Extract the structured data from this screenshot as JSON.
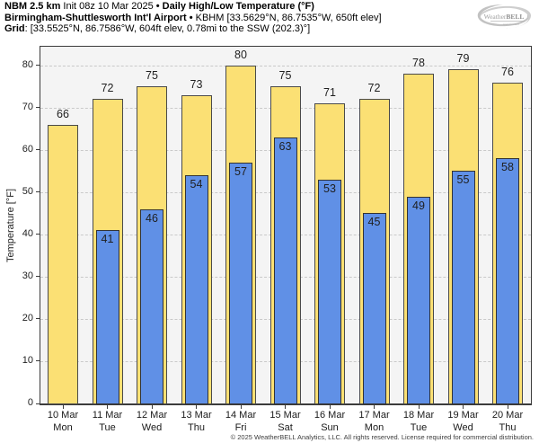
{
  "header": {
    "line1": {
      "model": "NBM 2.5 km",
      "init": " Init 08z 10 Mar 2025 ",
      "sep": "•",
      "product": " Daily High/Low Temperature (°F)"
    },
    "line2": {
      "station_name": "Birmingham-Shuttlesworth Int'l Airport",
      "sep": " • ",
      "station_info": "KBHM [33.5629°N, 86.7535°W, 650ft elev]"
    },
    "line3": {
      "label": "Grid",
      "info": ": [33.5525°N, 86.7586°W, 604ft elev, 0.78mi to the SSW (202.3)°]"
    }
  },
  "logo": {
    "brand": "WeatherBELL",
    "brand_part1": "Weather",
    "brand_part2": "BELL"
  },
  "chart_data": {
    "type": "bar",
    "title": "NBM 2.5 km Daily High/Low Temperature (°F) — KBHM",
    "xlabel": "",
    "ylabel": "Temperature [°F]",
    "ylim": [
      0,
      84.4
    ],
    "yticks": [
      0,
      10,
      20,
      30,
      40,
      50,
      60,
      70,
      80
    ],
    "grid": "horizontal-dashed",
    "legend_position": "none",
    "x_dates": [
      "10 Mar",
      "11 Mar",
      "12 Mar",
      "13 Mar",
      "14 Mar",
      "15 Mar",
      "16 Mar",
      "17 Mar",
      "18 Mar",
      "19 Mar",
      "20 Mar"
    ],
    "x_days": [
      "Mon",
      "Tue",
      "Wed",
      "Thu",
      "Fri",
      "Sat",
      "Sun",
      "Mon",
      "Tue",
      "Wed",
      "Thu"
    ],
    "series": [
      {
        "name": "Daily High",
        "color": "#fbe074",
        "border_color": "#4a4a4a",
        "values": [
          66,
          72,
          75,
          73,
          80,
          75,
          71,
          72,
          78,
          79,
          76
        ]
      },
      {
        "name": "Daily Low",
        "color": "#6090e6",
        "border_color": "#333333",
        "values": [
          null,
          41,
          46,
          54,
          57,
          63,
          53,
          45,
          49,
          55,
          58
        ]
      }
    ],
    "colors": {
      "plot_background": "#f4f4f4",
      "gridline": "#c9c9c9",
      "frame": "#3c3c3c",
      "high_bar": "#fbe074",
      "low_bar": "#6090e6"
    }
  },
  "footer": {
    "copyright": "© 2025 WeatherBELL Analytics, LLC. All rights reserved. License required for commercial distribution."
  }
}
